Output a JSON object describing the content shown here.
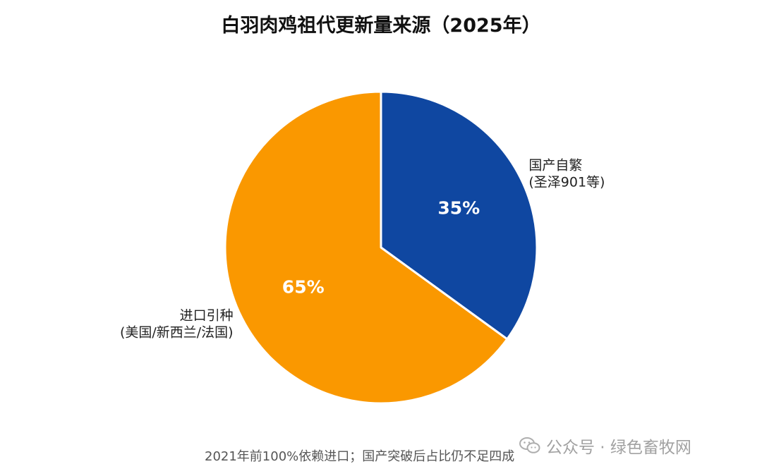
{
  "chart_data": {
    "type": "pie",
    "title": "白羽肉鸡祖代更新量来源（2025年）",
    "slices": [
      {
        "label_lines": [
          "国产自繁",
          "(圣泽901等)"
        ],
        "value": 35,
        "value_label": "35%",
        "color": "#0f47a1"
      },
      {
        "label_lines": [
          "进口引种",
          "(美国/新西兰/法国)"
        ],
        "value": 65,
        "value_label": "65%",
        "color": "#fa9800"
      }
    ],
    "start_angle": "12 o'clock",
    "direction": "clockwise",
    "slice_border_color": "#ffffff",
    "label_color": "#222222",
    "value_label_color": "#ffffff"
  },
  "footnote": "2021年前100%依赖进口；国产突破后占比仍不足四成",
  "watermark": {
    "icon": "wechat-icon",
    "text": "公众号 · 绿色畜牧网"
  }
}
